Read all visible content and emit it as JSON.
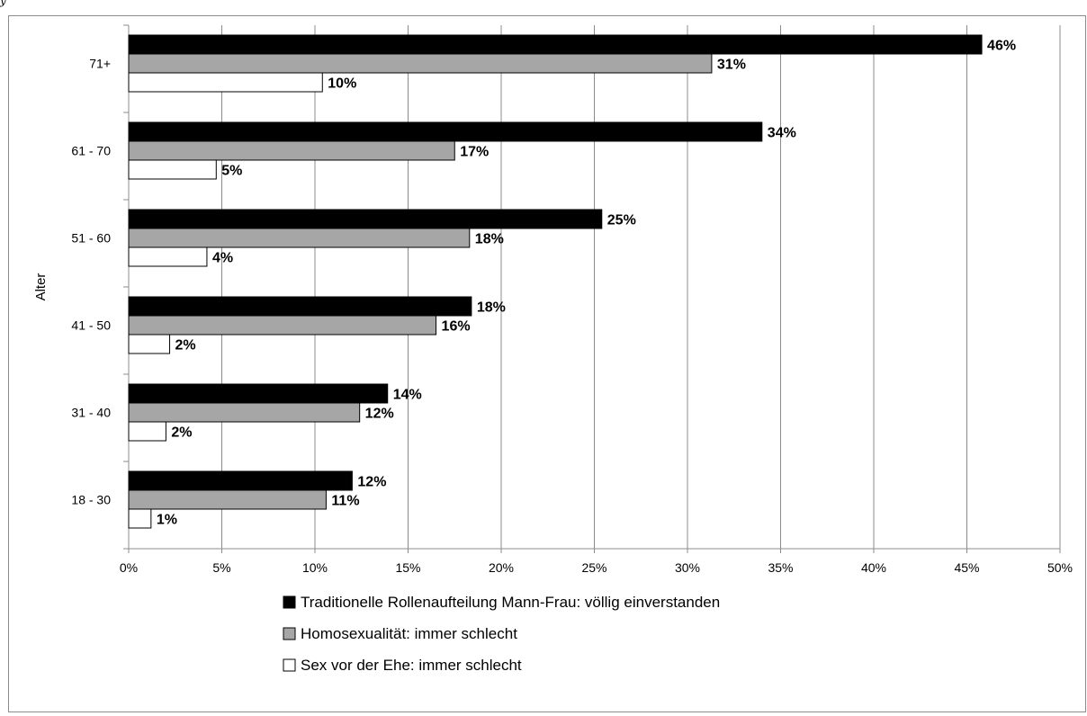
{
  "corner_text": "y",
  "chart_data": {
    "type": "bar",
    "orientation": "horizontal",
    "title": "",
    "xlabel": "",
    "ylabel": "Alter",
    "categories": [
      "71+",
      "61 - 70",
      "51 - 60",
      "41 - 50",
      "31 - 40",
      "18 - 30"
    ],
    "xlim": [
      0,
      50
    ],
    "x_ticks": [
      "0%",
      "5%",
      "10%",
      "15%",
      "20%",
      "25%",
      "30%",
      "35%",
      "40%",
      "45%",
      "50%"
    ],
    "grid": "vertical",
    "legend_position": "bottom",
    "series": [
      {
        "name": "Traditionelle Rollenaufteilung Mann-Frau: völlig einverstanden",
        "color": "#000000",
        "values": [
          45.8,
          34.0,
          25.4,
          18.4,
          13.9,
          12.0
        ],
        "labels": [
          "46%",
          "34%",
          "25%",
          "18%",
          "14%",
          "12%"
        ]
      },
      {
        "name": "Homosexualität: immer schlecht",
        "color": "#a6a6a6",
        "values": [
          31.3,
          17.5,
          18.3,
          16.5,
          12.4,
          10.6
        ],
        "labels": [
          "31%",
          "17%",
          "18%",
          "16%",
          "12%",
          "11%"
        ]
      },
      {
        "name": "Sex vor der Ehe: immer schlecht",
        "color": "#ffffff",
        "values": [
          10.4,
          4.7,
          4.2,
          2.2,
          2.0,
          1.2
        ],
        "labels": [
          "10%",
          "5%",
          "4%",
          "2%",
          "2%",
          "1%"
        ]
      }
    ]
  }
}
